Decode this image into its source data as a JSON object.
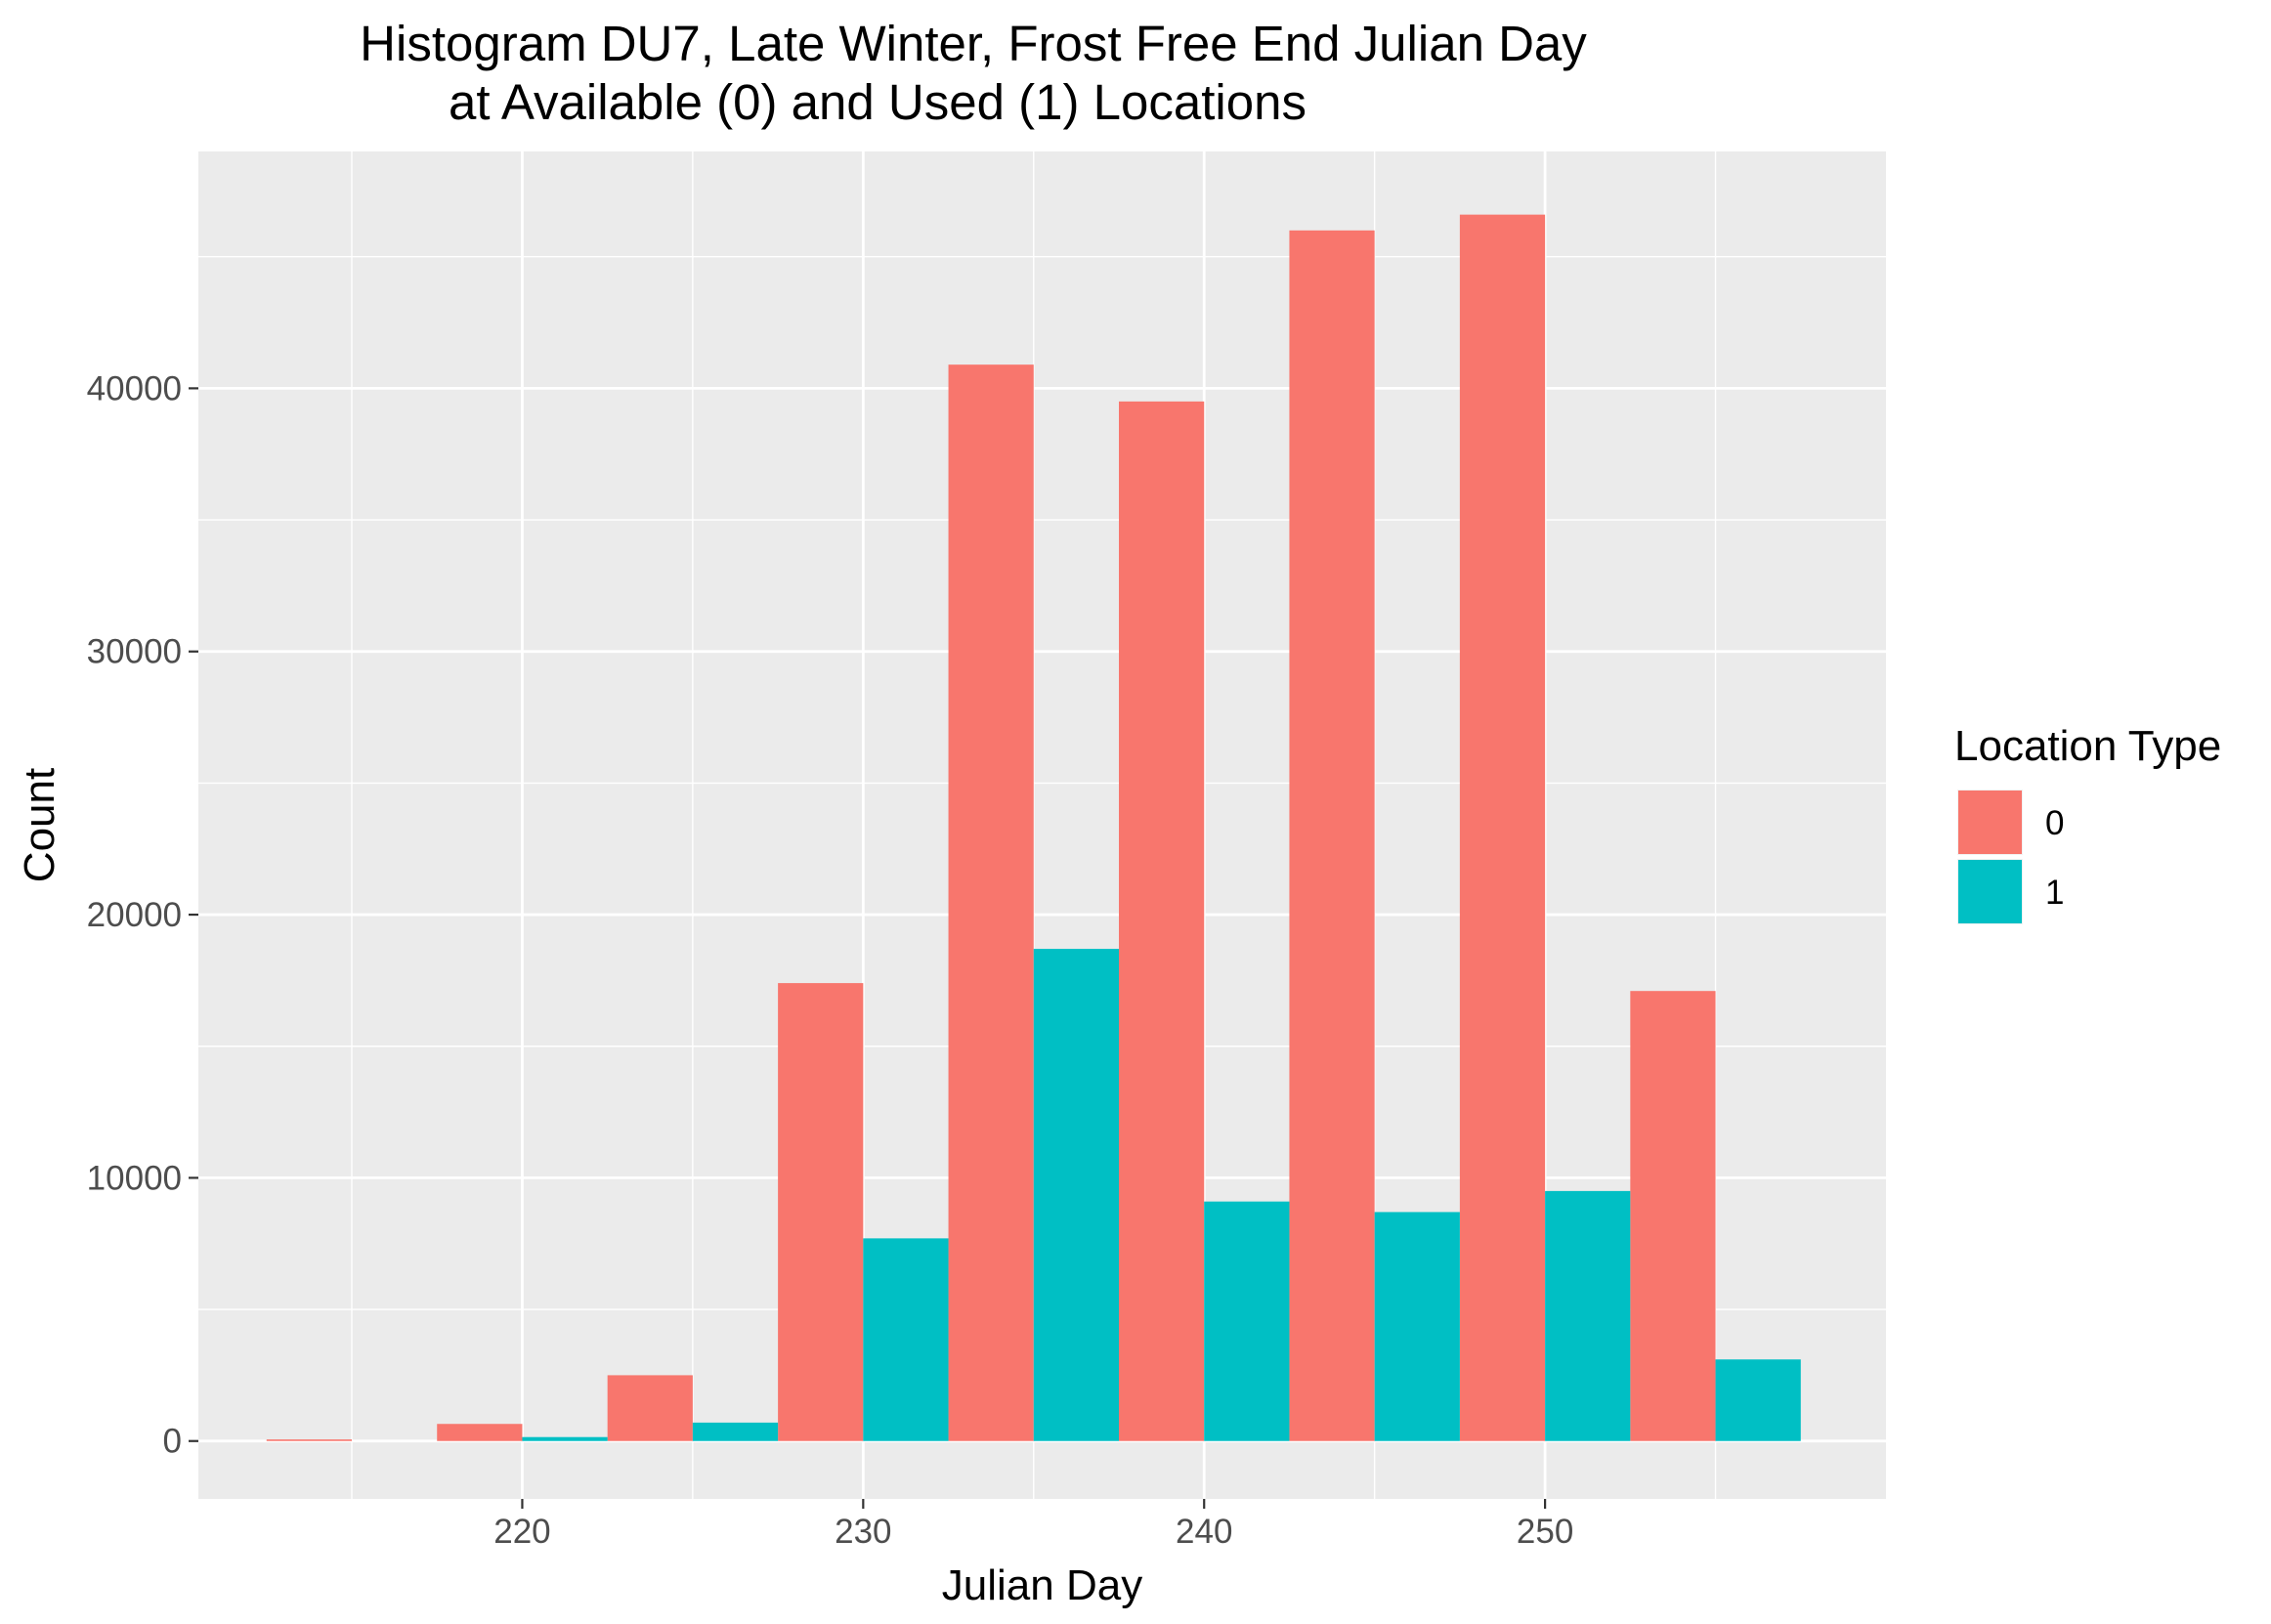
{
  "chart_data": {
    "type": "bar",
    "title_lines": [
      "Histogram DU7, Late Winter, Frost Free End Julian Day",
      "at Available (0) and Used (1) Locations"
    ],
    "xlabel": "Julian Day",
    "ylabel": "Count",
    "xlim": [
      210.5,
      260.0
    ],
    "ylim": [
      -2200,
      49000
    ],
    "x_ticks": [
      220,
      230,
      240,
      250
    ],
    "x_minor_breaks": [
      215,
      225,
      235,
      245,
      255
    ],
    "y_ticks": [
      0,
      10000,
      20000,
      30000,
      40000
    ],
    "y_minor_breaks": [
      5000,
      15000,
      25000,
      35000,
      45000
    ],
    "bin_width": 5,
    "bin_centers": [
      215,
      220,
      225,
      230,
      235,
      240,
      245,
      250,
      255
    ],
    "series": [
      {
        "name": "0",
        "color": "#F8766D",
        "values": [
          60,
          650,
          2500,
          17400,
          40900,
          39500,
          46000,
          46600,
          17100
        ]
      },
      {
        "name": "1",
        "color": "#00BFC4",
        "values": [
          0,
          150,
          700,
          7700,
          18700,
          9100,
          8700,
          9500,
          3100
        ]
      }
    ],
    "legend": {
      "title": "Location Type",
      "position": "right"
    },
    "grid": true,
    "panel_background": "#EBEBEB",
    "grid_color": "#FFFFFF"
  }
}
